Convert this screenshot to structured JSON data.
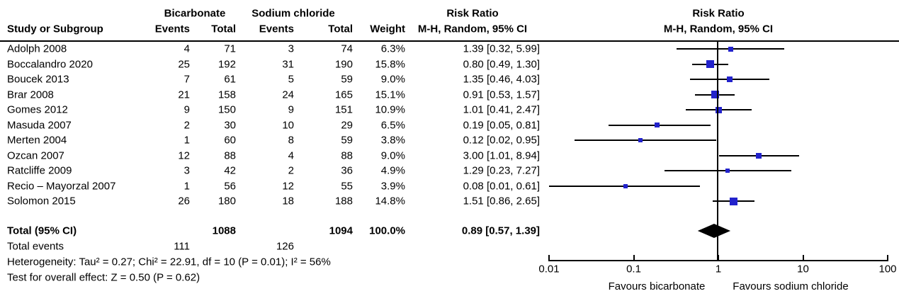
{
  "header": {
    "group1": "Bicarbonate",
    "group2": "Sodium chloride",
    "col_study": "Study or Subgroup",
    "col_events": "Events",
    "col_total": "Total",
    "col_weight": "Weight",
    "effect_title": "Risk Ratio",
    "effect_subtitle": "M-H, Random, 95% CI",
    "plot_title": "Risk Ratio",
    "plot_subtitle": "M-H, Random, 95% CI"
  },
  "chart_data": {
    "type": "forest",
    "x_scale": "log10",
    "x_range": [
      0.01,
      100
    ],
    "x_ticks": [
      "0.01",
      "0.1",
      "1",
      "10",
      "100"
    ],
    "null_line": 1,
    "marker_color": "#2222CC",
    "line_color": "#000000",
    "studies": [
      {
        "label": "Adolph 2008",
        "events1": "4",
        "total1": "71",
        "events2": "3",
        "total2": "74",
        "weight": "6.3%",
        "weight_pct": 6.3,
        "rr": 1.39,
        "lo": 0.32,
        "hi": 5.99,
        "ci_text": "1.39 [0.32, 5.99]"
      },
      {
        "label": "Boccalandro 2020",
        "events1": "25",
        "total1": "192",
        "events2": "31",
        "total2": "190",
        "weight": "15.8%",
        "weight_pct": 15.8,
        "rr": 0.8,
        "lo": 0.49,
        "hi": 1.3,
        "ci_text": "0.80 [0.49, 1.30]"
      },
      {
        "label": "Boucek 2013",
        "events1": "7",
        "total1": "61",
        "events2": "5",
        "total2": "59",
        "weight": "9.0%",
        "weight_pct": 9.0,
        "rr": 1.35,
        "lo": 0.46,
        "hi": 4.03,
        "ci_text": "1.35 [0.46, 4.03]"
      },
      {
        "label": "Brar 2008",
        "events1": "21",
        "total1": "158",
        "events2": "24",
        "total2": "165",
        "weight": "15.1%",
        "weight_pct": 15.1,
        "rr": 0.91,
        "lo": 0.53,
        "hi": 1.57,
        "ci_text": "0.91 [0.53, 1.57]"
      },
      {
        "label": "Gomes 2012",
        "events1": "9",
        "total1": "150",
        "events2": "9",
        "total2": "151",
        "weight": "10.9%",
        "weight_pct": 10.9,
        "rr": 1.01,
        "lo": 0.41,
        "hi": 2.47,
        "ci_text": "1.01 [0.41, 2.47]"
      },
      {
        "label": "Masuda 2007",
        "events1": "2",
        "total1": "30",
        "events2": "10",
        "total2": "29",
        "weight": "6.5%",
        "weight_pct": 6.5,
        "rr": 0.19,
        "lo": 0.05,
        "hi": 0.81,
        "ci_text": "0.19 [0.05, 0.81]"
      },
      {
        "label": "Merten 2004",
        "events1": "1",
        "total1": "60",
        "events2": "8",
        "total2": "59",
        "weight": "3.8%",
        "weight_pct": 3.8,
        "rr": 0.12,
        "lo": 0.02,
        "hi": 0.95,
        "ci_text": "0.12 [0.02, 0.95]"
      },
      {
        "label": "Ozcan 2007",
        "events1": "12",
        "total1": "88",
        "events2": "4",
        "total2": "88",
        "weight": "9.0%",
        "weight_pct": 9.0,
        "rr": 3.0,
        "lo": 1.01,
        "hi": 8.94,
        "ci_text": "3.00 [1.01, 8.94]"
      },
      {
        "label": "Ratcliffe 2009",
        "events1": "3",
        "total1": "42",
        "events2": "2",
        "total2": "36",
        "weight": "4.9%",
        "weight_pct": 4.9,
        "rr": 1.29,
        "lo": 0.23,
        "hi": 7.27,
        "ci_text": "1.29 [0.23, 7.27]"
      },
      {
        "label": "Recio – Mayorzal 2007",
        "events1": "1",
        "total1": "56",
        "events2": "12",
        "total2": "55",
        "weight": "3.9%",
        "weight_pct": 3.9,
        "rr": 0.08,
        "lo": 0.01,
        "hi": 0.61,
        "ci_text": "0.08 [0.01, 0.61]"
      },
      {
        "label": "Solomon 2015",
        "events1": "26",
        "total1": "180",
        "events2": "18",
        "total2": "188",
        "weight": "14.8%",
        "weight_pct": 14.8,
        "rr": 1.51,
        "lo": 0.86,
        "hi": 2.65,
        "ci_text": "1.51 [0.86, 2.65]"
      }
    ],
    "total": {
      "label": "Total (95% CI)",
      "total1": "1088",
      "total2": "1094",
      "weight": "100.0%",
      "rr": 0.89,
      "lo": 0.57,
      "hi": 1.39,
      "ci_text": "0.89 [0.57, 1.39]"
    },
    "total_events": {
      "label": "Total events",
      "events1": "111",
      "events2": "126"
    },
    "heterogeneity": "Heterogeneity: Tau² = 0.27; Chi² = 22.91, df = 10 (P = 0.01); I² = 56%",
    "overall_effect": "Test for overall effect: Z = 0.50 (P = 0.62)",
    "axis_labels": {
      "left": "Favours bicarbonate",
      "right": "Favours sodium chloride"
    }
  }
}
